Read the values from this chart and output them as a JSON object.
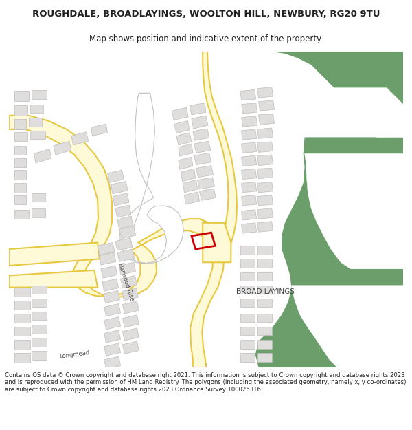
{
  "title_line1": "ROUGHDALE, BROADLAYINGS, WOOLTON HILL, NEWBURY, RG20 9TU",
  "title_line2": "Map shows position and indicative extent of the property.",
  "footer_text": "Contains OS data © Crown copyright and database right 2021. This information is subject to Crown copyright and database rights 2023 and is reproduced with the permission of HM Land Registry. The polygons (including the associated geometry, namely x, y co-ordinates) are subject to Crown copyright and database rights 2023 Ordnance Survey 100026316.",
  "map_bg": "#ffffff",
  "road_fill": "#fef9d7",
  "road_border": "#e8c840",
  "green_color": "#6b9e6b",
  "building_color": "#e0dddd",
  "building_edge": "#c0bcbc",
  "highlight_color": "#cc0000",
  "text_color": "#222222",
  "figsize": [
    6.0,
    6.25
  ],
  "dpi": 100
}
